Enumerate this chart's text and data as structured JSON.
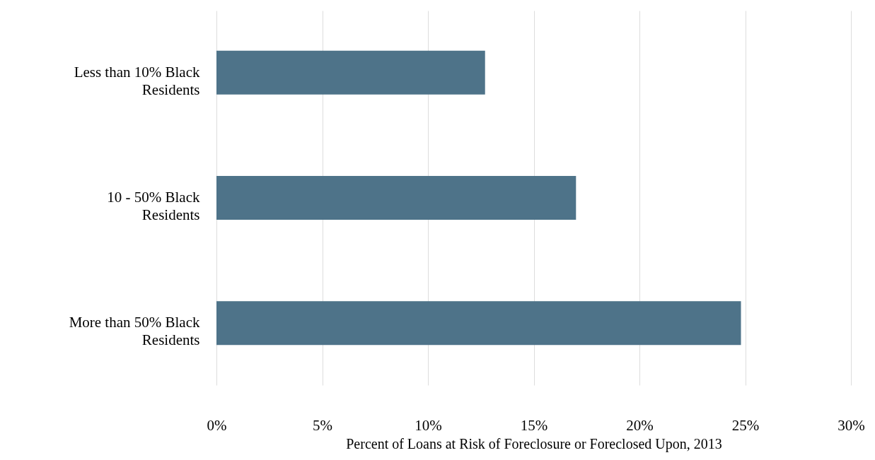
{
  "chart_data": {
    "type": "bar",
    "orientation": "horizontal",
    "xlabel": "Percent of Loans at Risk of Foreclosure or Foreclosed Upon, 2013",
    "categories": [
      "Less than 10% Black Residents",
      "10 - 50% Black Residents",
      "More than 50% Black Residents"
    ],
    "values": [
      12.7,
      17.0,
      24.8
    ],
    "color": "#4e7389",
    "xlim": [
      0,
      30
    ],
    "xticks": [
      {
        "value": 0,
        "label": "0%"
      },
      {
        "value": 5,
        "label": "5%"
      },
      {
        "value": 10,
        "label": "10%"
      },
      {
        "value": 15,
        "label": "15%"
      },
      {
        "value": 20,
        "label": "20%"
      },
      {
        "value": 25,
        "label": "25%"
      },
      {
        "value": 30,
        "label": "30%"
      }
    ],
    "grid": "x"
  }
}
